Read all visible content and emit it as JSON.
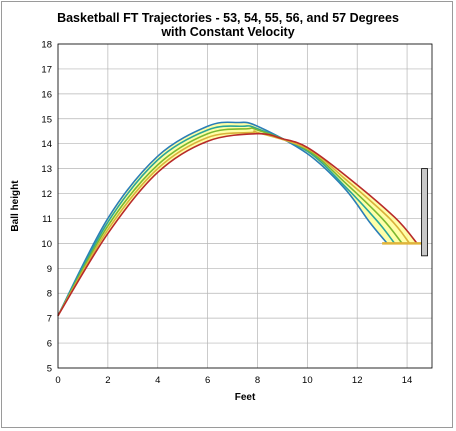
{
  "chart_data": {
    "type": "line",
    "title": "Basketball FT Trajectories - 53, 54, 55, 56, and 57 Degrees",
    "subtitle": "with Constant Velocity",
    "xlabel": "Feet",
    "ylabel": "Ball height",
    "xlim": [
      0,
      15
    ],
    "ylim": [
      5,
      18
    ],
    "x_ticks": [
      "0",
      "2",
      "4",
      "6",
      "8",
      "10",
      "12",
      "14"
    ],
    "y_ticks": [
      "5",
      "6",
      "7",
      "8",
      "9",
      "10",
      "11",
      "12",
      "13",
      "14",
      "15",
      "16",
      "17",
      "18"
    ],
    "grid": true,
    "series": [
      {
        "color": "#2a7db8",
        "points": [
          [
            0,
            7.1
          ],
          [
            2,
            11.0
          ],
          [
            4,
            13.5
          ],
          [
            6,
            14.7
          ],
          [
            7.2,
            14.85
          ],
          [
            8,
            14.7
          ],
          [
            10,
            13.6
          ],
          [
            11.5,
            12.2
          ],
          [
            12.5,
            10.85
          ],
          [
            13.2,
            10.0
          ]
        ]
      },
      {
        "color": "#2aa59a",
        "points": [
          [
            0,
            7.1
          ],
          [
            2,
            10.85
          ],
          [
            4,
            13.35
          ],
          [
            6,
            14.55
          ],
          [
            7.4,
            14.7
          ],
          [
            8,
            14.6
          ],
          [
            10,
            13.7
          ],
          [
            11.5,
            12.3
          ],
          [
            12.8,
            10.9
          ],
          [
            13.5,
            10.0
          ]
        ]
      },
      {
        "color": "#7cb830",
        "points": [
          [
            0,
            7.1
          ],
          [
            2,
            10.7
          ],
          [
            4,
            13.15
          ],
          [
            6,
            14.4
          ],
          [
            7.6,
            14.6
          ],
          [
            8,
            14.55
          ],
          [
            10,
            13.75
          ],
          [
            11.5,
            12.45
          ],
          [
            13.0,
            11.0
          ],
          [
            13.8,
            10.0
          ]
        ]
      },
      {
        "color": "#d9b23a",
        "points": [
          [
            0,
            7.1
          ],
          [
            2,
            10.55
          ],
          [
            4,
            13.0
          ],
          [
            6,
            14.25
          ],
          [
            7.8,
            14.45
          ],
          [
            8,
            14.45
          ],
          [
            10,
            13.8
          ],
          [
            11.5,
            12.6
          ],
          [
            13.3,
            11.0
          ],
          [
            14.1,
            10.0
          ]
        ]
      },
      {
        "color": "#b82a2a",
        "points": [
          [
            0,
            7.1
          ],
          [
            2,
            10.4
          ],
          [
            4,
            12.85
          ],
          [
            6,
            14.1
          ],
          [
            8,
            14.4
          ],
          [
            9,
            14.2
          ],
          [
            10,
            13.85
          ],
          [
            11.5,
            12.75
          ],
          [
            13.5,
            11.05
          ],
          [
            14.4,
            10.0
          ]
        ]
      }
    ],
    "band_fill": "#ffff99",
    "rim": {
      "x": [
        13.0,
        14.6
      ],
      "y": 10.0,
      "color": "#e0b43a"
    },
    "backboard": {
      "x": 14.7,
      "y_range": [
        9.5,
        13.0
      ],
      "color": "#c8c8c8"
    }
  }
}
